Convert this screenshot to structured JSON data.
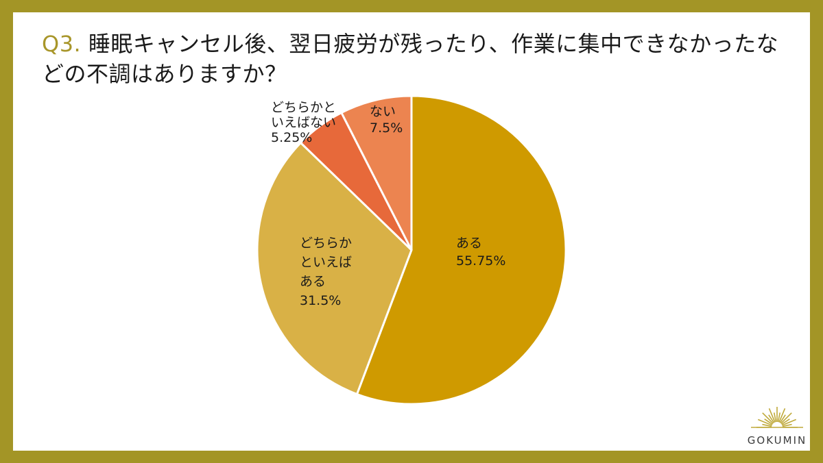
{
  "title": {
    "prefix": "Q3.",
    "text": " 睡眠キャンセル後、翌日疲労が残ったり、作業に集中できなかったなどの不調はありますか？"
  },
  "logo": {
    "text": "GOKUMIN"
  },
  "colors": {
    "frame": "#a39526",
    "accent": "#a8962a",
    "slice_aru": "#cf9a00",
    "slice_dochiraka_aru": "#d9b146",
    "slice_dochiraka_nai": "#e7693a",
    "slice_nai": "#ec8450"
  },
  "chart_data": {
    "type": "pie",
    "title": "",
    "start_angle_deg": 0,
    "direction": "clockwise",
    "slices": [
      {
        "label_lines": [
          "ある"
        ],
        "value": 55.75,
        "value_label": "55.75%",
        "color": "#cf9a00"
      },
      {
        "label_lines": [
          "どちらか",
          "といえば",
          "ある"
        ],
        "value": 31.5,
        "value_label": "31.5%",
        "color": "#d9b146"
      },
      {
        "label_lines": [
          "どちらかと",
          "いえばない"
        ],
        "value": 5.25,
        "value_label": "5.25%",
        "color": "#e7693a"
      },
      {
        "label_lines": [
          "ない"
        ],
        "value": 7.5,
        "value_label": "7.5%",
        "color": "#ec8450"
      }
    ]
  }
}
